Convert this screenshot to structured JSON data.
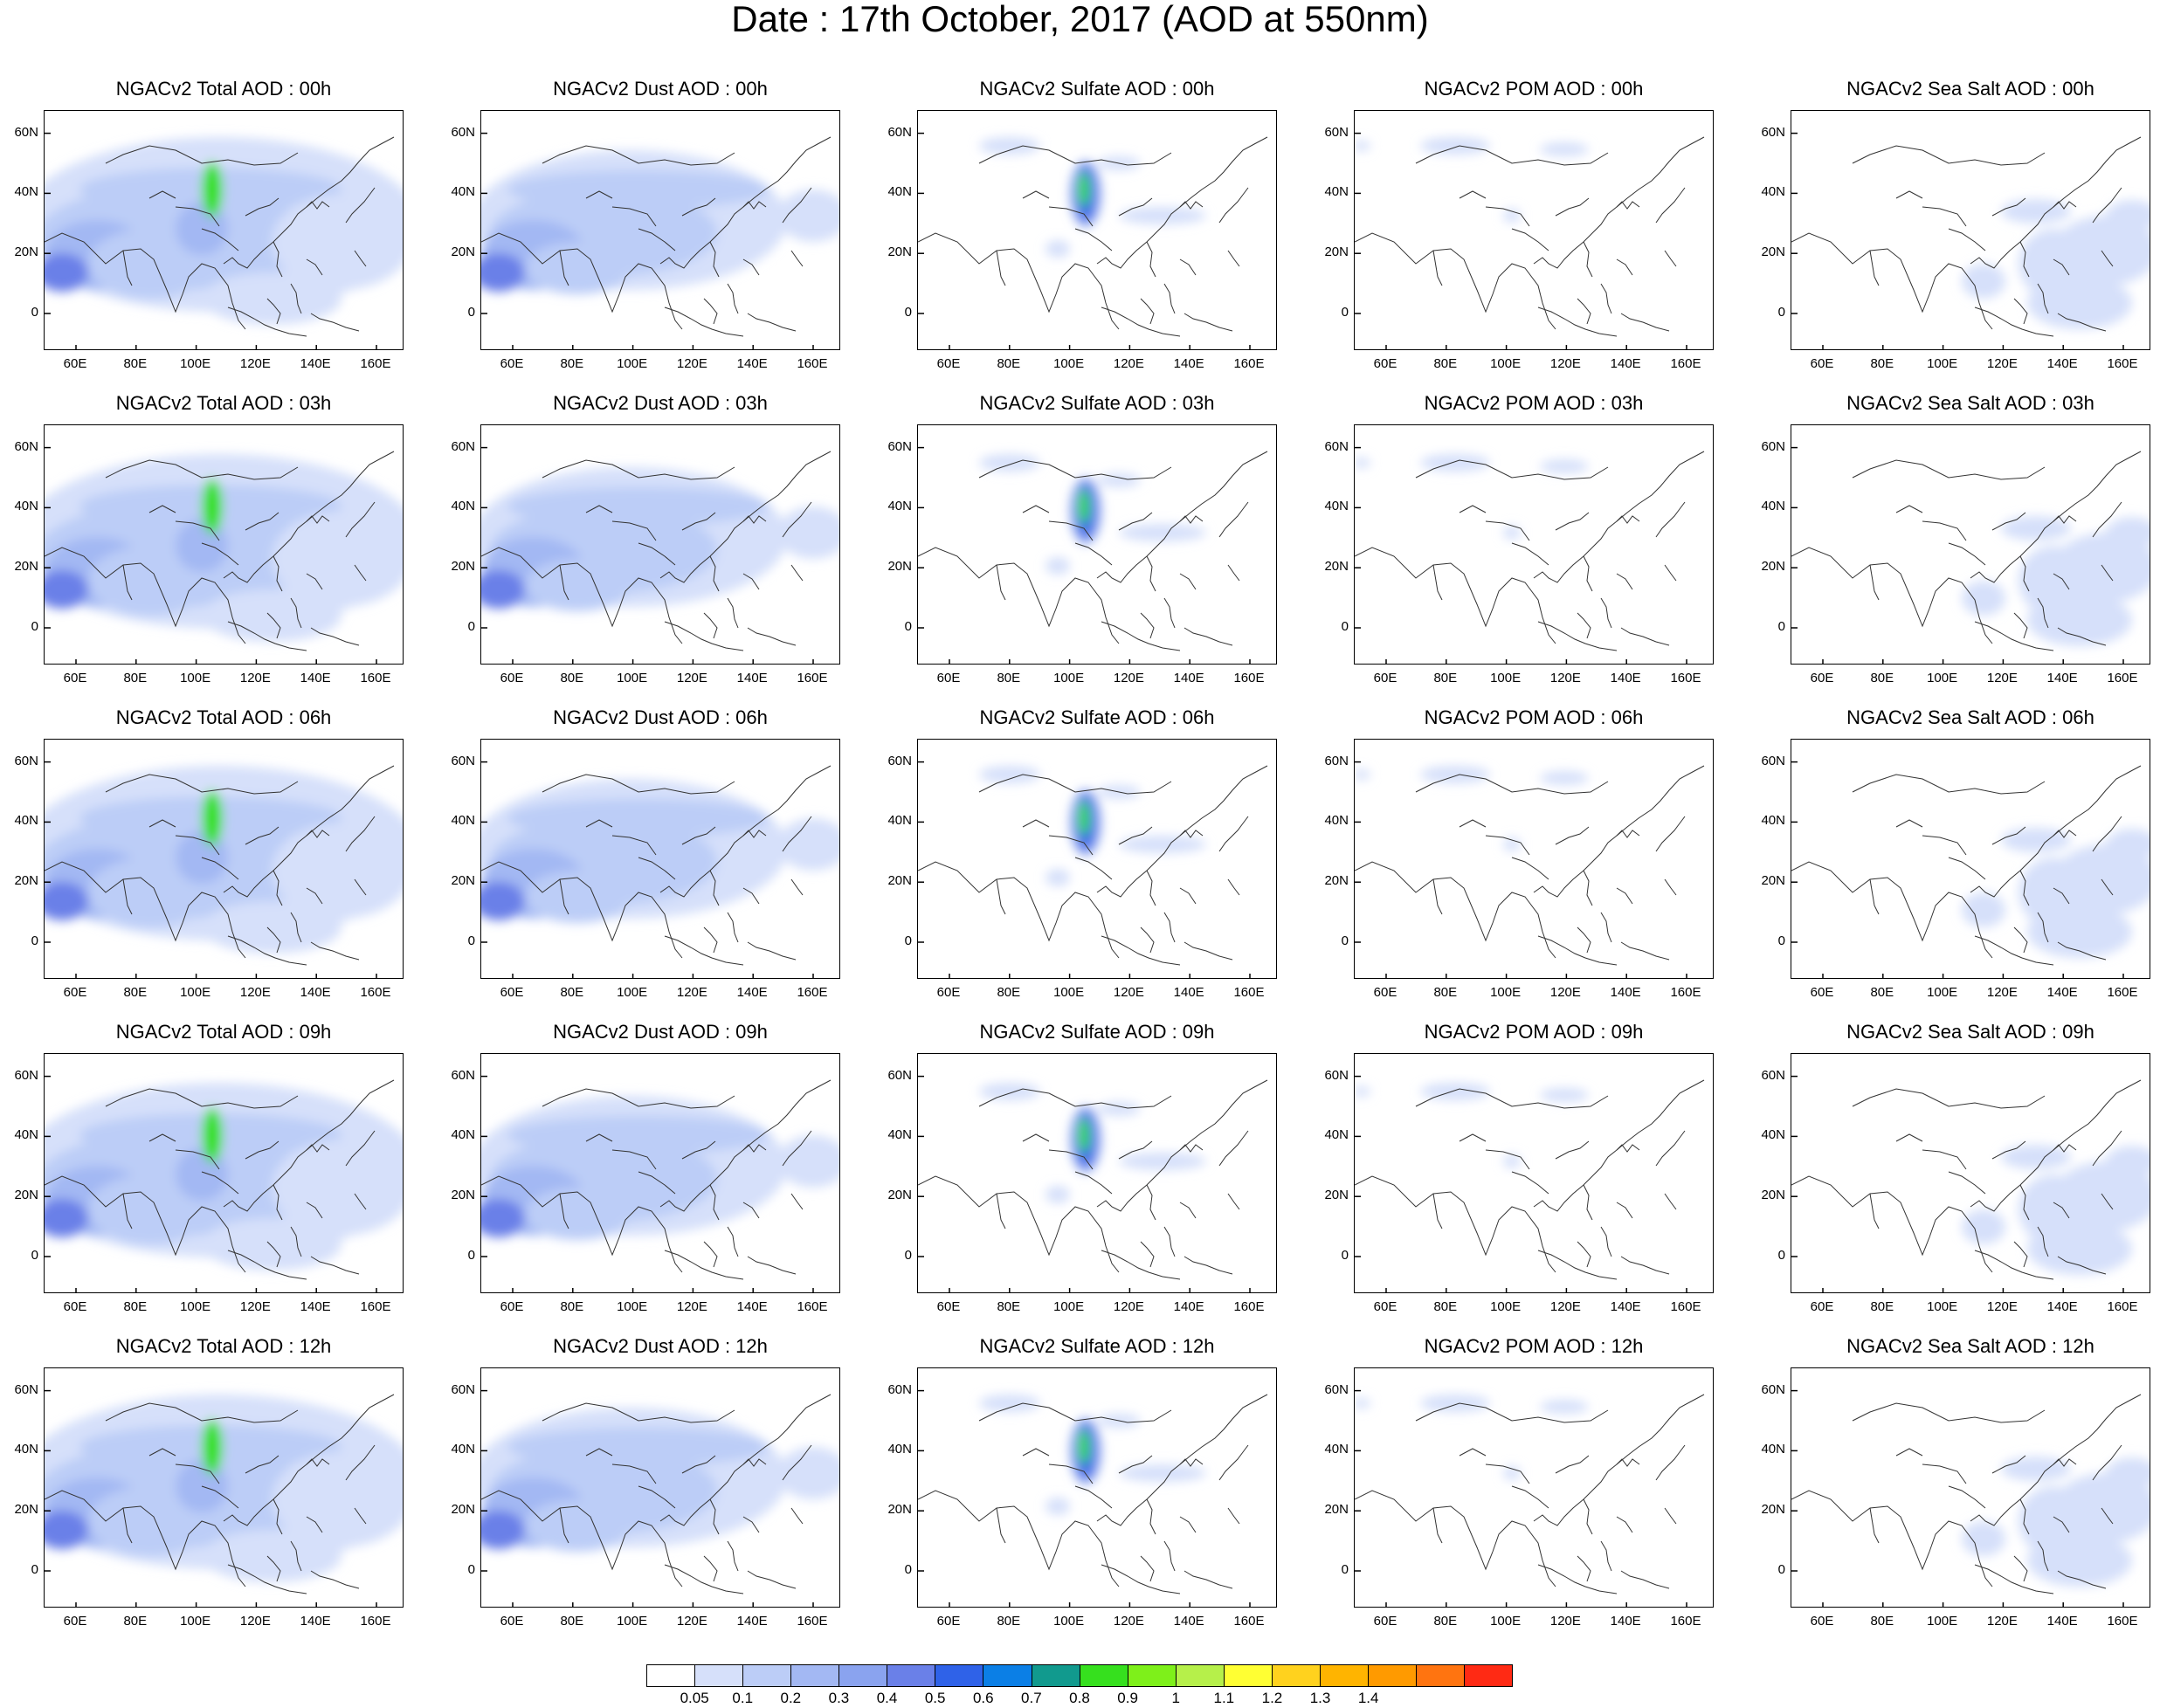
{
  "title": "Date : 17th October, 2017 (AOD at 550nm)",
  "rows": [
    [
      "NGACv2 Total AOD : 00h",
      "NGACv2 Dust AOD : 00h",
      "NGACv2 Sulfate AOD : 00h",
      "NGACv2 POM AOD : 00h",
      "NGACv2 Sea Salt AOD : 00h"
    ],
    [
      "NGACv2 Total AOD : 03h",
      "NGACv2 Dust AOD : 03h",
      "NGACv2 Sulfate AOD : 03h",
      "NGACv2 POM AOD : 03h",
      "NGACv2 Sea Salt AOD : 03h"
    ],
    [
      "NGACv2 Total AOD : 06h",
      "NGACv2 Dust AOD : 06h",
      "NGACv2 Sulfate AOD : 06h",
      "NGACv2 POM AOD : 06h",
      "NGACv2 Sea Salt AOD : 06h"
    ],
    [
      "NGACv2 Total AOD : 09h",
      "NGACv2 Dust AOD : 09h",
      "NGACv2 Sulfate AOD : 09h",
      "NGACv2 POM AOD : 09h",
      "NGACv2 Sea Salt  AOD : 09h"
    ],
    [
      "NGACv2 Total AOD  : 12h",
      "NGACv2 Dust AOD : 12h",
      "NGACv2 Sulfate AOD : 12h",
      "NGACv2 POM  AOD : 12h",
      "NGACv2 Sea Salt  AOD : 12h"
    ]
  ],
  "lat_labels": [
    "60N",
    "40N",
    "20N",
    "0"
  ],
  "lon_labels": [
    "60E",
    "80E",
    "100E",
    "120E",
    "140E",
    "160E"
  ],
  "colorbar": {
    "colors": [
      "#ffffff",
      "#d6e0fa",
      "#bccdf7",
      "#a3b8f3",
      "#8aa3ef",
      "#6a80e8",
      "#2f62e8",
      "#0b7fe6",
      "#119a8e",
      "#36e01e",
      "#7ef01a",
      "#b6f04a",
      "#ffff33",
      "#ffd21e",
      "#ffb400",
      "#ff9a00",
      "#ff7410",
      "#ff2a14"
    ],
    "labels": [
      "0.05",
      "0.1",
      "0.2",
      "0.3",
      "0.4",
      "0.5",
      "0.6",
      "0.7",
      "0.8",
      "0.9",
      "1",
      "1.1",
      "1.2",
      "1.3",
      "1.4"
    ]
  }
}
